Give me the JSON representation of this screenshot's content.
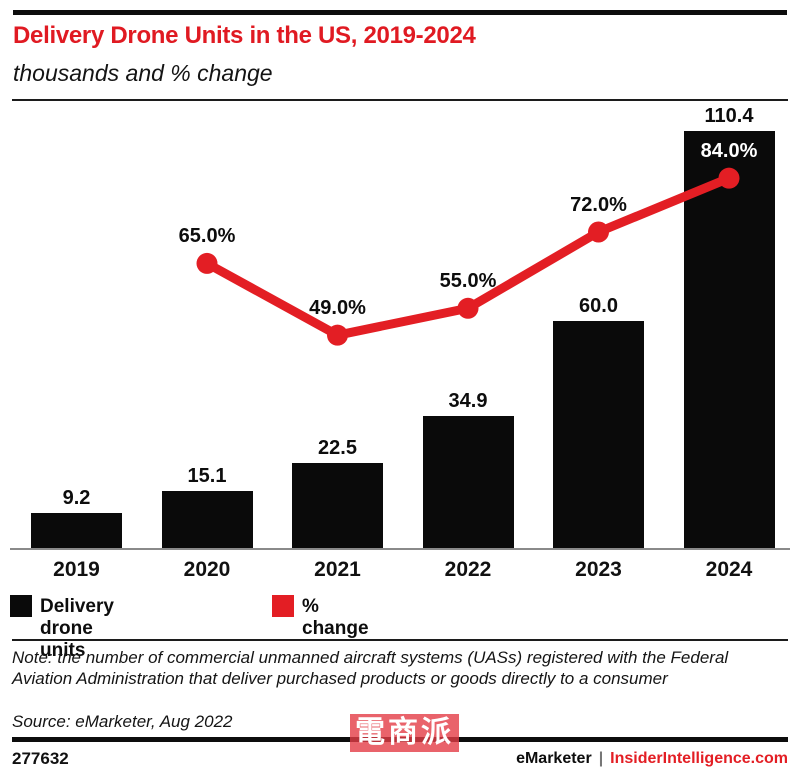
{
  "header": {
    "title": "Delivery Drone Units in the US, 2019-2024",
    "subtitle": "thousands and % change"
  },
  "chart_data": {
    "type": "combo-bar-line",
    "title": "Delivery Drone Units in the US, 2019-2024",
    "subtitle": "thousands and % change",
    "categories": [
      "2019",
      "2020",
      "2021",
      "2022",
      "2023",
      "2024"
    ],
    "series": [
      {
        "name": "Delivery drone units",
        "kind": "bar",
        "units": "thousands",
        "values": [
          9.2,
          15.1,
          22.5,
          34.9,
          60.0,
          110.4
        ],
        "labels": [
          "9.2",
          "15.1",
          "22.5",
          "34.9",
          "60.0",
          "110.4"
        ],
        "color": "#0a0a0a"
      },
      {
        "name": "% change",
        "kind": "line",
        "units": "%",
        "values": [
          null,
          65.0,
          49.0,
          55.0,
          72.0,
          84.0
        ],
        "labels": [
          null,
          "65.0%",
          "49.0%",
          "55.0%",
          "72.0%",
          "84.0%"
        ],
        "color": "#e31e24"
      }
    ],
    "layout_hints": {
      "grid": false,
      "value_labels_shown": true,
      "legend_position": "bottom-left",
      "x_axis_line": true,
      "y_axis_shown": false
    }
  },
  "legend": {
    "items": [
      {
        "label": "Delivery drone units",
        "color": "#0a0a0a",
        "swatch": "black-square-icon"
      },
      {
        "label": "% change",
        "color": "#e31e24",
        "swatch": "red-square-icon"
      }
    ]
  },
  "note": "Note: the number of commercial unmanned aircraft systems (UASs) registered with the Federal Aviation Administration that deliver purchased products or goods directly to a consumer",
  "source": "Source: eMarketer, Aug 2022",
  "footer": {
    "chart_id": "277632",
    "brand": "eMarketer",
    "separator": "|",
    "site": "InsiderIntelligence.com"
  },
  "watermark": "電商派",
  "colors": {
    "accent_red": "#e31e24",
    "title_red": "#e01a22",
    "bar_black": "#0a0a0a"
  }
}
